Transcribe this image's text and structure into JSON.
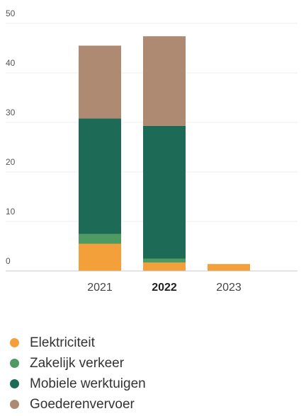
{
  "chart_data": {
    "type": "bar",
    "stacked": true,
    "categories": [
      "2021",
      "2022",
      "2023"
    ],
    "highlighted_category": "2022",
    "series": [
      {
        "name": "Elektriciteit",
        "color": "#f4a03a",
        "values": [
          5.5,
          1.7,
          1.4
        ]
      },
      {
        "name": "Zakelijk verkeer",
        "color": "#4e9a63",
        "values": [
          2.0,
          0.8,
          0
        ]
      },
      {
        "name": "Mobiele werktuigen",
        "color": "#1d6b57",
        "values": [
          23.3,
          26.8,
          0
        ]
      },
      {
        "name": "Goederenvervoer",
        "color": "#ae8a72",
        "values": [
          14.7,
          18.1,
          0
        ]
      }
    ],
    "y_ticks": [
      0,
      10,
      20,
      30,
      40,
      50
    ],
    "ylim": [
      0,
      50
    ],
    "grid": true,
    "legend_position": "bottom-left",
    "title": "",
    "xlabel": "",
    "ylabel": ""
  }
}
